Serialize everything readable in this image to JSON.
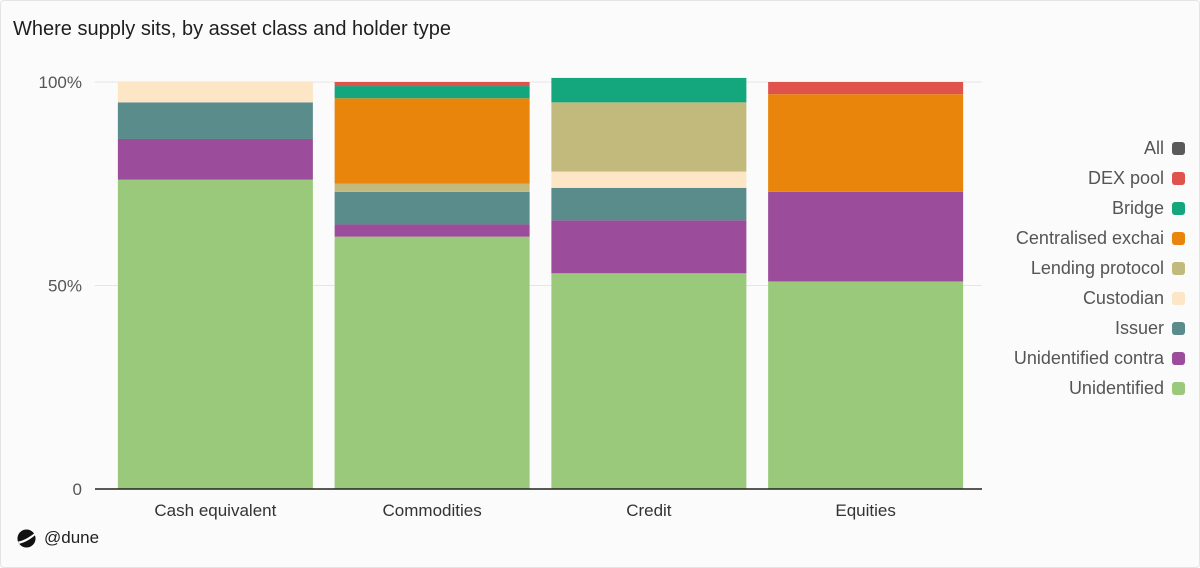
{
  "chart_data": {
    "type": "bar",
    "stacked": true,
    "title": "Where supply sits, by asset class and holder type",
    "xlabel": "",
    "ylabel": "",
    "ylim": [
      0,
      100
    ],
    "yticks": [
      {
        "value": 0,
        "label": "0"
      },
      {
        "value": 50,
        "label": "50%"
      },
      {
        "value": 100,
        "label": "100%"
      }
    ],
    "grid": true,
    "legend_position": "right",
    "categories": [
      "Cash equivalent",
      "Commodities",
      "Credit",
      "Equities"
    ],
    "series": [
      {
        "name": "Unidentified",
        "color": "#9bc97b",
        "values": [
          76,
          62,
          53,
          51
        ]
      },
      {
        "name": "Unidentified contract",
        "color": "#9b4d9b",
        "values": [
          10,
          3,
          13,
          22
        ]
      },
      {
        "name": "Issuer",
        "color": "#5b8c8c",
        "values": [
          9,
          8,
          8,
          0
        ]
      },
      {
        "name": "Custodian",
        "color": "#fde6c6",
        "values": [
          5,
          0,
          4,
          0
        ]
      },
      {
        "name": "Lending protocol",
        "color": "#c2ba7c",
        "values": [
          0,
          2,
          17,
          0
        ]
      },
      {
        "name": "Centralised exchange",
        "color": "#e8850a",
        "values": [
          0,
          21,
          0,
          24
        ]
      },
      {
        "name": "Bridge",
        "color": "#14a67c",
        "values": [
          0,
          3,
          6,
          0
        ]
      },
      {
        "name": "DEX pool",
        "color": "#e0524c",
        "values": [
          0,
          1,
          0,
          3
        ]
      },
      {
        "name": "All",
        "color": "#5a5a5a",
        "values": [
          0,
          0,
          0,
          0
        ]
      }
    ]
  },
  "legend": {
    "items": [
      "All",
      "DEX pool",
      "Bridge",
      "Centralised exchai",
      "Lending protocol",
      "Custodian",
      "Issuer",
      "Unidentified contra",
      "Unidentified"
    ]
  },
  "brand": {
    "handle": "@dune"
  }
}
